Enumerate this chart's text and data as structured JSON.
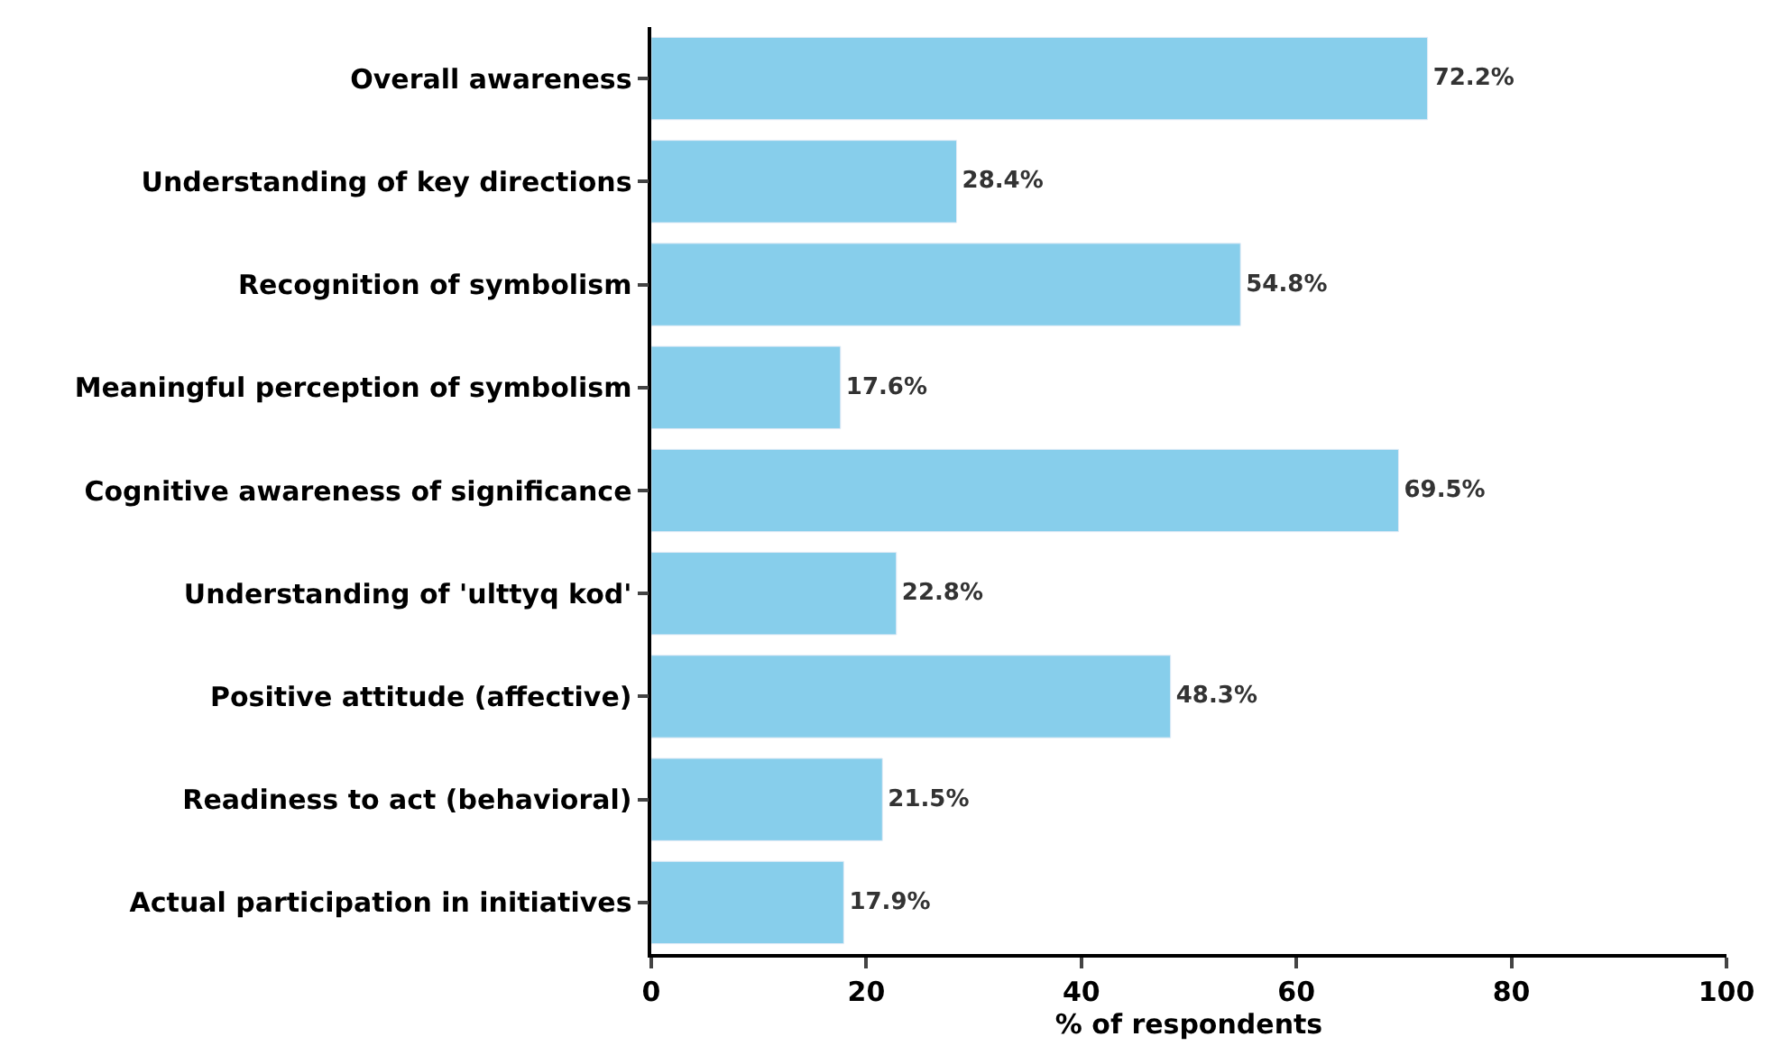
{
  "chart_data": {
    "type": "bar",
    "orientation": "horizontal",
    "xlabel": "% of respondents",
    "categories": [
      "Overall awareness",
      "Understanding of key directions",
      "Recognition of symbolism",
      "Meaningful perception of symbolism",
      "Cognitive awareness of significance",
      "Understanding of 'ulttyq kod'",
      "Positive attitude (affective)",
      "Readiness to act (behavioral)",
      "Actual participation in initiatives"
    ],
    "values": [
      72.2,
      28.4,
      54.8,
      17.6,
      69.5,
      22.8,
      48.3,
      21.5,
      17.9
    ],
    "value_labels": [
      "72.2%",
      "28.4%",
      "54.8%",
      "17.6%",
      "69.5%",
      "22.8%",
      "48.3%",
      "21.5%",
      "17.9%"
    ],
    "color": "#87ceeb",
    "xlim": [
      0,
      100
    ],
    "xticks": [
      0,
      20,
      40,
      60,
      80,
      100
    ]
  }
}
